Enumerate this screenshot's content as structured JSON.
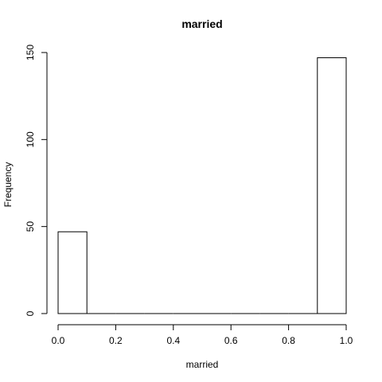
{
  "chart_data": {
    "type": "bar",
    "title": "married",
    "xlabel": "married",
    "ylabel": "Frequency",
    "bins": [
      {
        "start": 0.0,
        "end": 0.1,
        "count": 47
      },
      {
        "start": 0.1,
        "end": 0.2,
        "count": 0
      },
      {
        "start": 0.2,
        "end": 0.3,
        "count": 0
      },
      {
        "start": 0.3,
        "end": 0.4,
        "count": 0
      },
      {
        "start": 0.4,
        "end": 0.5,
        "count": 0
      },
      {
        "start": 0.5,
        "end": 0.6,
        "count": 0
      },
      {
        "start": 0.6,
        "end": 0.7,
        "count": 0
      },
      {
        "start": 0.7,
        "end": 0.8,
        "count": 0
      },
      {
        "start": 0.8,
        "end": 0.9,
        "count": 0
      },
      {
        "start": 0.9,
        "end": 1.0,
        "count": 147
      }
    ],
    "xlim": [
      0,
      1
    ],
    "ylim": [
      0,
      150
    ],
    "x_ticks": [
      "0.0",
      "0.2",
      "0.4",
      "0.6",
      "0.8",
      "1.0"
    ],
    "y_ticks": [
      "0",
      "50",
      "100",
      "150"
    ],
    "grid": false,
    "legend": "none"
  }
}
